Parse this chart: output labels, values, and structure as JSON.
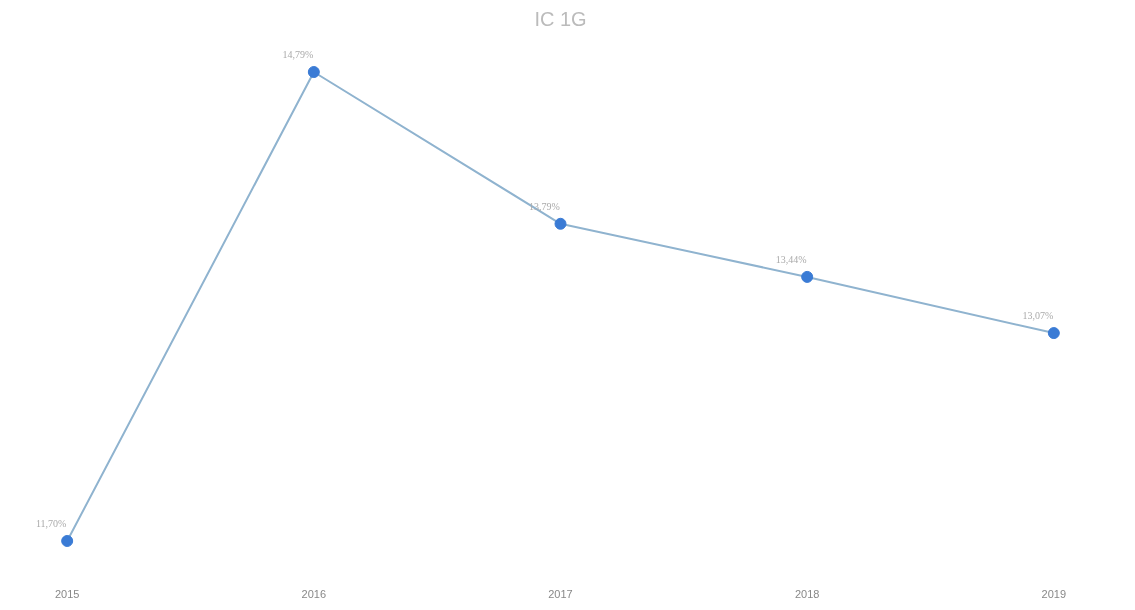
{
  "chart_data": {
    "type": "line",
    "title": "IC 1G",
    "categories": [
      "2015",
      "2016",
      "2017",
      "2018",
      "2019"
    ],
    "marker": "circle",
    "grid": false,
    "series": [
      {
        "color": "#3a7bd5",
        "values": [
          11.7,
          14.79,
          13.79,
          13.44,
          13.07
        ],
        "value_labels": [
          "11,70%",
          "14,79%",
          "13,79%",
          "13,44%",
          "13,07%"
        ]
      }
    ]
  }
}
